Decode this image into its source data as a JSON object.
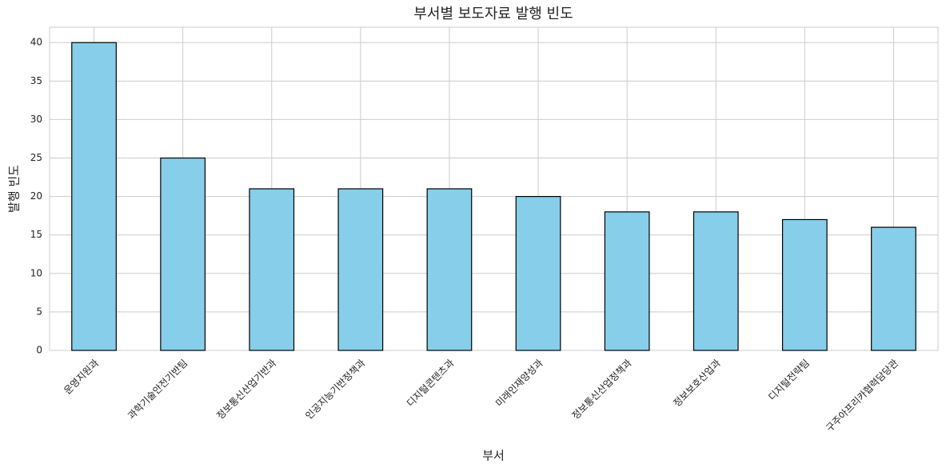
{
  "chart_data": {
    "type": "bar",
    "title": "부서별 보도자료 발행 빈도",
    "x_label": "부서",
    "y_label": "발행 빈도",
    "categories": [
      "운영지원과",
      "과학기술안전기반팀",
      "정보통신산업기반과",
      "인공지능기반정책과",
      "디지털콘텐츠과",
      "미래인재양성과",
      "정보통신산업정책과",
      "정보보호산업과",
      "디지털전략팀",
      "구주아프리카협력담당관"
    ],
    "values": [
      40,
      25,
      21,
      21,
      21,
      20,
      18,
      18,
      17,
      16
    ],
    "color": "#87ceeb",
    "edgecolor": "#000000",
    "ylim": [
      0,
      42
    ],
    "yticks": [
      0,
      5,
      10,
      15,
      20,
      25,
      30,
      35,
      40
    ],
    "grid": true
  }
}
